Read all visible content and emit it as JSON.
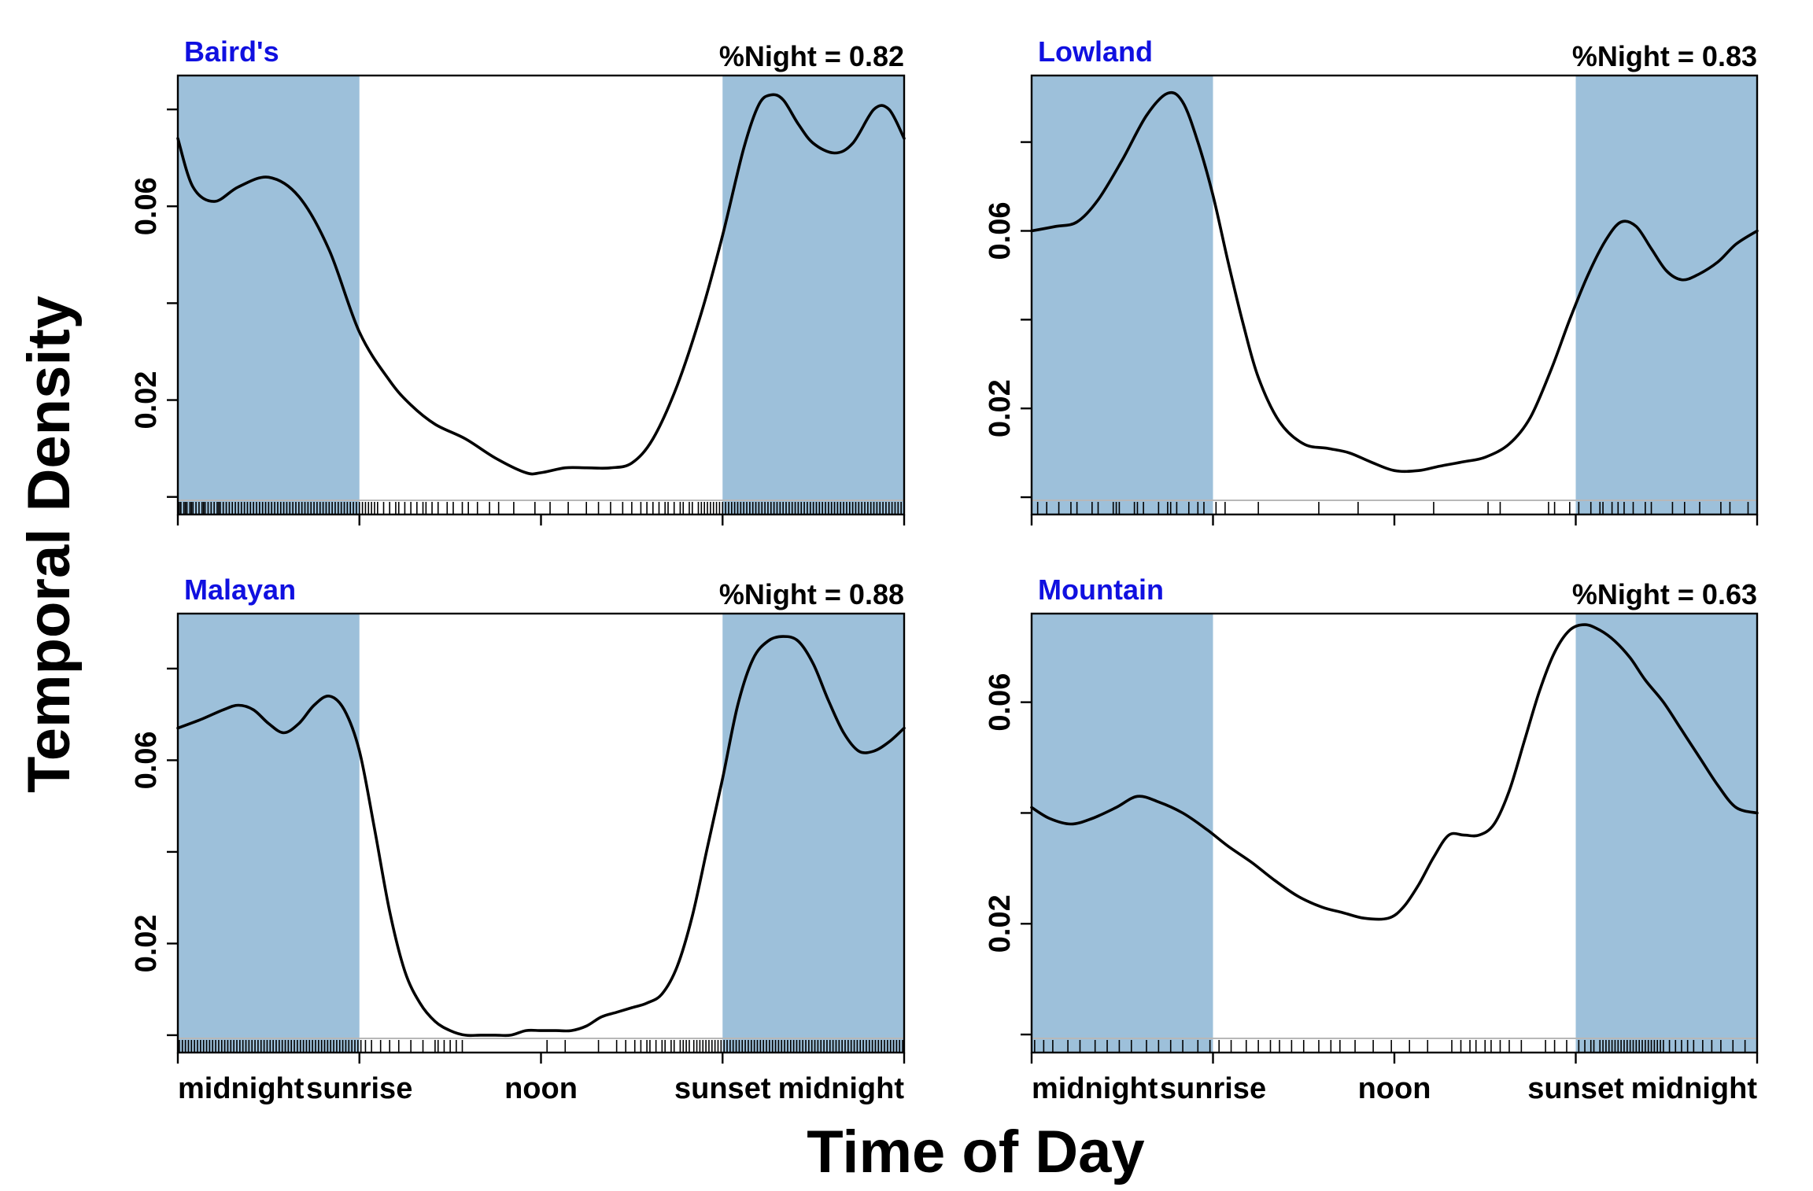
{
  "figure": {
    "ylabel": "Temporal Density",
    "xlabel": "Time of Day"
  },
  "colors": {
    "night_band": "#9dc0da",
    "curve": "#000000",
    "panel_title": "#1010e0",
    "rug": "#000000"
  },
  "chart_data": [
    {
      "type": "line",
      "title": "Baird's",
      "annotation": "%Night = 0.82",
      "xlim": [
        0,
        24
      ],
      "ylim": [
        -0.0007,
        0.087
      ],
      "night_bands": [
        [
          0,
          6
        ],
        [
          18,
          24
        ]
      ],
      "x_ticks": [
        0,
        6,
        12,
        18,
        24
      ],
      "x_tick_labels": [
        "midnight",
        "sunrise",
        "noon",
        "sunset",
        "midnight"
      ],
      "y_ticks": [
        0.0,
        0.02,
        0.04,
        0.06,
        0.08
      ],
      "y_tick_labels": [
        "",
        "0.02",
        "",
        "0.06",
        ""
      ],
      "series": [
        {
          "x": [
            0,
            0.5,
            1.2,
            2,
            3,
            4,
            5,
            6,
            7,
            7.7,
            8.5,
            9.5,
            10.5,
            11.5,
            12,
            12.8,
            13.5,
            14.3,
            15,
            15.7,
            16.5,
            17.3,
            18,
            18.7,
            19.2,
            19.6,
            20,
            20.5,
            21,
            21.7,
            22.3,
            23,
            23.5,
            24
          ],
          "y": [
            0.074,
            0.064,
            0.061,
            0.064,
            0.066,
            0.062,
            0.051,
            0.034,
            0.024,
            0.019,
            0.015,
            0.012,
            0.008,
            0.005,
            0.005,
            0.006,
            0.006,
            0.006,
            0.007,
            0.012,
            0.023,
            0.038,
            0.054,
            0.072,
            0.081,
            0.083,
            0.082,
            0.077,
            0.073,
            0.071,
            0.073,
            0.08,
            0.08,
            0.074
          ]
        }
      ],
      "rug": [
        0.05,
        0.1,
        0.2,
        0.25,
        0.3,
        0.4,
        0.45,
        0.5,
        0.6,
        0.7,
        0.8,
        0.85,
        0.9,
        1.0,
        1.1,
        1.2,
        1.3,
        1.35,
        1.4,
        1.5,
        1.6,
        1.7,
        1.8,
        1.9,
        2.0,
        2.1,
        2.2,
        2.3,
        2.4,
        2.5,
        2.6,
        2.7,
        2.8,
        2.9,
        3.0,
        3.1,
        3.2,
        3.3,
        3.4,
        3.5,
        3.6,
        3.7,
        3.8,
        3.9,
        4.0,
        4.1,
        4.2,
        4.3,
        4.4,
        4.5,
        4.6,
        4.7,
        4.8,
        4.9,
        5.0,
        5.1,
        5.2,
        5.3,
        5.4,
        5.5,
        5.6,
        5.7,
        5.8,
        5.9,
        6.0,
        6.1,
        6.2,
        6.3,
        6.4,
        6.5,
        6.6,
        6.8,
        7.0,
        7.2,
        7.3,
        7.5,
        7.7,
        7.9,
        8.1,
        8.2,
        8.4,
        8.6,
        8.9,
        9.1,
        9.4,
        9.6,
        9.9,
        10.3,
        10.6,
        11.1,
        11.8,
        12.3,
        12.9,
        13.5,
        13.9,
        14.3,
        14.7,
        15.0,
        15.3,
        15.5,
        15.7,
        15.9,
        16.1,
        16.2,
        16.4,
        16.6,
        16.7,
        16.9,
        17.0,
        17.2,
        17.3,
        17.4,
        17.5,
        17.6,
        17.7,
        17.8,
        17.9,
        18.0,
        18.1,
        18.2,
        18.3,
        18.4,
        18.5,
        18.6,
        18.7,
        18.8,
        18.9,
        19.0,
        19.1,
        19.2,
        19.3,
        19.4,
        19.5,
        19.6,
        19.7,
        19.8,
        19.9,
        20.0,
        20.1,
        20.2,
        20.3,
        20.4,
        20.5,
        20.6,
        20.7,
        20.8,
        20.9,
        21.0,
        21.1,
        21.2,
        21.3,
        21.4,
        21.5,
        21.6,
        21.7,
        21.8,
        21.9,
        22.0,
        22.1,
        22.2,
        22.3,
        22.4,
        22.5,
        22.6,
        22.7,
        22.8,
        22.9,
        23.0,
        23.1,
        23.2,
        23.3,
        23.4,
        23.5,
        23.6,
        23.7,
        23.8,
        23.9
      ]
    },
    {
      "type": "line",
      "title": "Lowland",
      "annotation": "%Night = 0.83",
      "xlim": [
        0,
        24
      ],
      "ylim": [
        -0.0007,
        0.095
      ],
      "night_bands": [
        [
          0,
          6
        ],
        [
          18,
          24
        ]
      ],
      "x_ticks": [
        0,
        6,
        12,
        18,
        24
      ],
      "x_tick_labels": [
        "midnight",
        "sunrise",
        "noon",
        "sunset",
        "midnight"
      ],
      "y_ticks": [
        0.0,
        0.02,
        0.04,
        0.06,
        0.08
      ],
      "y_tick_labels": [
        "",
        "0.02",
        "",
        "0.06",
        ""
      ],
      "series": [
        {
          "x": [
            0,
            0.8,
            1.5,
            2.2,
            3,
            3.8,
            4.5,
            5,
            5.5,
            6,
            6.5,
            7,
            7.5,
            8.2,
            9,
            9.8,
            10.5,
            11.2,
            12,
            12.8,
            13.5,
            14.3,
            15,
            15.8,
            16.5,
            17.2,
            17.8,
            18.4,
            19,
            19.5,
            20,
            20.5,
            21,
            21.5,
            22,
            22.7,
            23.3,
            24
          ],
          "y": [
            0.06,
            0.061,
            0.062,
            0.067,
            0.076,
            0.086,
            0.091,
            0.089,
            0.08,
            0.068,
            0.053,
            0.039,
            0.027,
            0.017,
            0.012,
            0.011,
            0.01,
            0.008,
            0.006,
            0.006,
            0.007,
            0.008,
            0.009,
            0.012,
            0.018,
            0.029,
            0.04,
            0.05,
            0.058,
            0.062,
            0.061,
            0.056,
            0.051,
            0.049,
            0.05,
            0.053,
            0.057,
            0.06
          ]
        }
      ],
      "rug": [
        0.2,
        0.5,
        0.9,
        1.3,
        1.5,
        2.0,
        2.2,
        2.7,
        2.8,
        2.9,
        3.4,
        3.5,
        3.7,
        4.2,
        4.5,
        4.6,
        4.8,
        5.2,
        5.5,
        5.7,
        6.1,
        6.4,
        7.5,
        9.5,
        10.8,
        13.3,
        15.1,
        15.5,
        17.1,
        17.3,
        17.8,
        18.1,
        18.5,
        18.8,
        18.9,
        19.2,
        19.4,
        19.6,
        19.9,
        20.3,
        20.5,
        21.2,
        21.6,
        22.1,
        22.8,
        23.1,
        23.7
      ]
    },
    {
      "type": "line",
      "title": "Malayan",
      "annotation": "%Night = 0.88",
      "xlim": [
        0,
        24
      ],
      "ylim": [
        -0.0007,
        0.092
      ],
      "night_bands": [
        [
          0,
          6
        ],
        [
          18,
          24
        ]
      ],
      "x_ticks": [
        0,
        6,
        12,
        18,
        24
      ],
      "x_tick_labels": [
        "midnight",
        "sunrise",
        "noon",
        "sunset",
        "midnight"
      ],
      "y_ticks": [
        0.0,
        0.02,
        0.04,
        0.06,
        0.08
      ],
      "y_tick_labels": [
        "",
        "0.02",
        "",
        "0.06",
        ""
      ],
      "series": [
        {
          "x": [
            0,
            0.8,
            1.5,
            2,
            2.5,
            3,
            3.5,
            4,
            4.5,
            5,
            5.5,
            6,
            6.5,
            7,
            7.5,
            8,
            8.5,
            9,
            9.5,
            10,
            10.5,
            11,
            11.5,
            12,
            12.5,
            13,
            13.5,
            14,
            14.5,
            15,
            15.5,
            16,
            16.5,
            17,
            17.5,
            18,
            18.5,
            19,
            19.5,
            20,
            20.5,
            21,
            21.5,
            22,
            22.5,
            23,
            23.5,
            24
          ],
          "y": [
            0.067,
            0.069,
            0.071,
            0.072,
            0.071,
            0.068,
            0.066,
            0.068,
            0.072,
            0.074,
            0.071,
            0.062,
            0.045,
            0.027,
            0.014,
            0.007,
            0.003,
            0.001,
            0.0,
            0.0,
            0.0,
            0.0,
            0.001,
            0.001,
            0.001,
            0.001,
            0.002,
            0.004,
            0.005,
            0.006,
            0.007,
            0.009,
            0.015,
            0.026,
            0.041,
            0.056,
            0.072,
            0.082,
            0.086,
            0.087,
            0.086,
            0.081,
            0.073,
            0.066,
            0.062,
            0.062,
            0.064,
            0.067
          ]
        }
      ],
      "rug": [
        0.05,
        0.15,
        0.25,
        0.35,
        0.45,
        0.55,
        0.65,
        0.75,
        0.85,
        0.95,
        1.05,
        1.15,
        1.25,
        1.35,
        1.45,
        1.55,
        1.65,
        1.75,
        1.85,
        1.95,
        2.05,
        2.15,
        2.25,
        2.35,
        2.45,
        2.55,
        2.65,
        2.75,
        2.85,
        2.95,
        3.05,
        3.15,
        3.25,
        3.35,
        3.45,
        3.55,
        3.65,
        3.75,
        3.85,
        3.95,
        4.05,
        4.15,
        4.25,
        4.35,
        4.45,
        4.55,
        4.65,
        4.75,
        4.85,
        4.95,
        5.05,
        5.15,
        5.25,
        5.35,
        5.45,
        5.55,
        5.65,
        5.75,
        5.85,
        5.95,
        6.05,
        6.2,
        6.4,
        6.7,
        7.0,
        7.3,
        7.7,
        8.1,
        8.5,
        8.6,
        8.8,
        9.0,
        9.2,
        9.4,
        12.2,
        12.8,
        13.9,
        14.5,
        14.8,
        15.1,
        15.3,
        15.5,
        15.6,
        15.8,
        16.0,
        16.1,
        16.3,
        16.4,
        16.6,
        16.7,
        16.8,
        16.9,
        17.05,
        17.15,
        17.25,
        17.35,
        17.45,
        17.55,
        17.65,
        17.75,
        17.85,
        17.95,
        18.05,
        18.15,
        18.25,
        18.35,
        18.45,
        18.55,
        18.65,
        18.75,
        18.85,
        18.95,
        19.05,
        19.15,
        19.25,
        19.35,
        19.45,
        19.55,
        19.65,
        19.75,
        19.85,
        19.95,
        20.05,
        20.15,
        20.25,
        20.35,
        20.45,
        20.55,
        20.65,
        20.75,
        20.85,
        20.95,
        21.05,
        21.15,
        21.25,
        21.35,
        21.45,
        21.55,
        21.65,
        21.75,
        21.85,
        21.95,
        22.05,
        22.15,
        22.25,
        22.35,
        22.45,
        22.55,
        22.65,
        22.75,
        22.85,
        22.95,
        23.05,
        23.15,
        23.25,
        23.35,
        23.45,
        23.55,
        23.65,
        23.75,
        23.85,
        23.95
      ]
    },
    {
      "type": "line",
      "title": "Mountain",
      "annotation": "%Night = 0.63",
      "xlim": [
        0,
        24
      ],
      "ylim": [
        -0.0007,
        0.076
      ],
      "night_bands": [
        [
          0,
          6
        ],
        [
          18,
          24
        ]
      ],
      "x_ticks": [
        0,
        6,
        12,
        18,
        24
      ],
      "x_tick_labels": [
        "midnight",
        "sunrise",
        "noon",
        "sunset",
        "midnight"
      ],
      "y_ticks": [
        0.0,
        0.02,
        0.04,
        0.06
      ],
      "y_tick_labels": [
        "",
        "0.02",
        "",
        "0.06"
      ],
      "series": [
        {
          "x": [
            0,
            0.6,
            1.3,
            2,
            2.8,
            3.5,
            4.2,
            5,
            5.8,
            6.5,
            7.3,
            8,
            8.8,
            9.6,
            10.3,
            11,
            11.8,
            12.3,
            12.8,
            13.3,
            13.8,
            14.3,
            14.8,
            15.3,
            15.8,
            16.3,
            16.8,
            17.3,
            17.8,
            18.3,
            18.8,
            19.3,
            19.8,
            20.3,
            20.9,
            21.5,
            22.1,
            22.7,
            23.3,
            24
          ],
          "y": [
            0.041,
            0.039,
            0.038,
            0.039,
            0.041,
            0.043,
            0.042,
            0.04,
            0.037,
            0.034,
            0.031,
            0.028,
            0.025,
            0.023,
            0.022,
            0.021,
            0.021,
            0.023,
            0.027,
            0.032,
            0.036,
            0.036,
            0.036,
            0.038,
            0.044,
            0.053,
            0.062,
            0.069,
            0.073,
            0.074,
            0.073,
            0.071,
            0.068,
            0.064,
            0.06,
            0.055,
            0.05,
            0.045,
            0.041,
            0.04
          ]
        }
      ],
      "rug": [
        0.1,
        0.4,
        0.7,
        1.2,
        1.6,
        2.1,
        2.5,
        2.9,
        3.3,
        3.8,
        4.2,
        4.6,
        5.0,
        5.5,
        5.9,
        6.2,
        6.6,
        7.1,
        7.5,
        7.9,
        8.2,
        8.6,
        9.0,
        9.5,
        9.9,
        10.2,
        10.7,
        11.3,
        11.9,
        12.5,
        13.1,
        13.9,
        14.2,
        14.5,
        14.7,
        15.0,
        15.2,
        15.5,
        15.8,
        16.2,
        17.0,
        17.3,
        17.7,
        18.1,
        18.3,
        18.5,
        18.6,
        18.8,
        18.9,
        19.0,
        19.1,
        19.2,
        19.3,
        19.4,
        19.5,
        19.6,
        19.7,
        19.8,
        19.9,
        20.0,
        20.1,
        20.2,
        20.3,
        20.4,
        20.5,
        20.6,
        20.7,
        20.8,
        20.9,
        21.1,
        21.3,
        21.5,
        21.7,
        21.9,
        22.2,
        22.5,
        22.8,
        23.2,
        23.6
      ]
    }
  ]
}
